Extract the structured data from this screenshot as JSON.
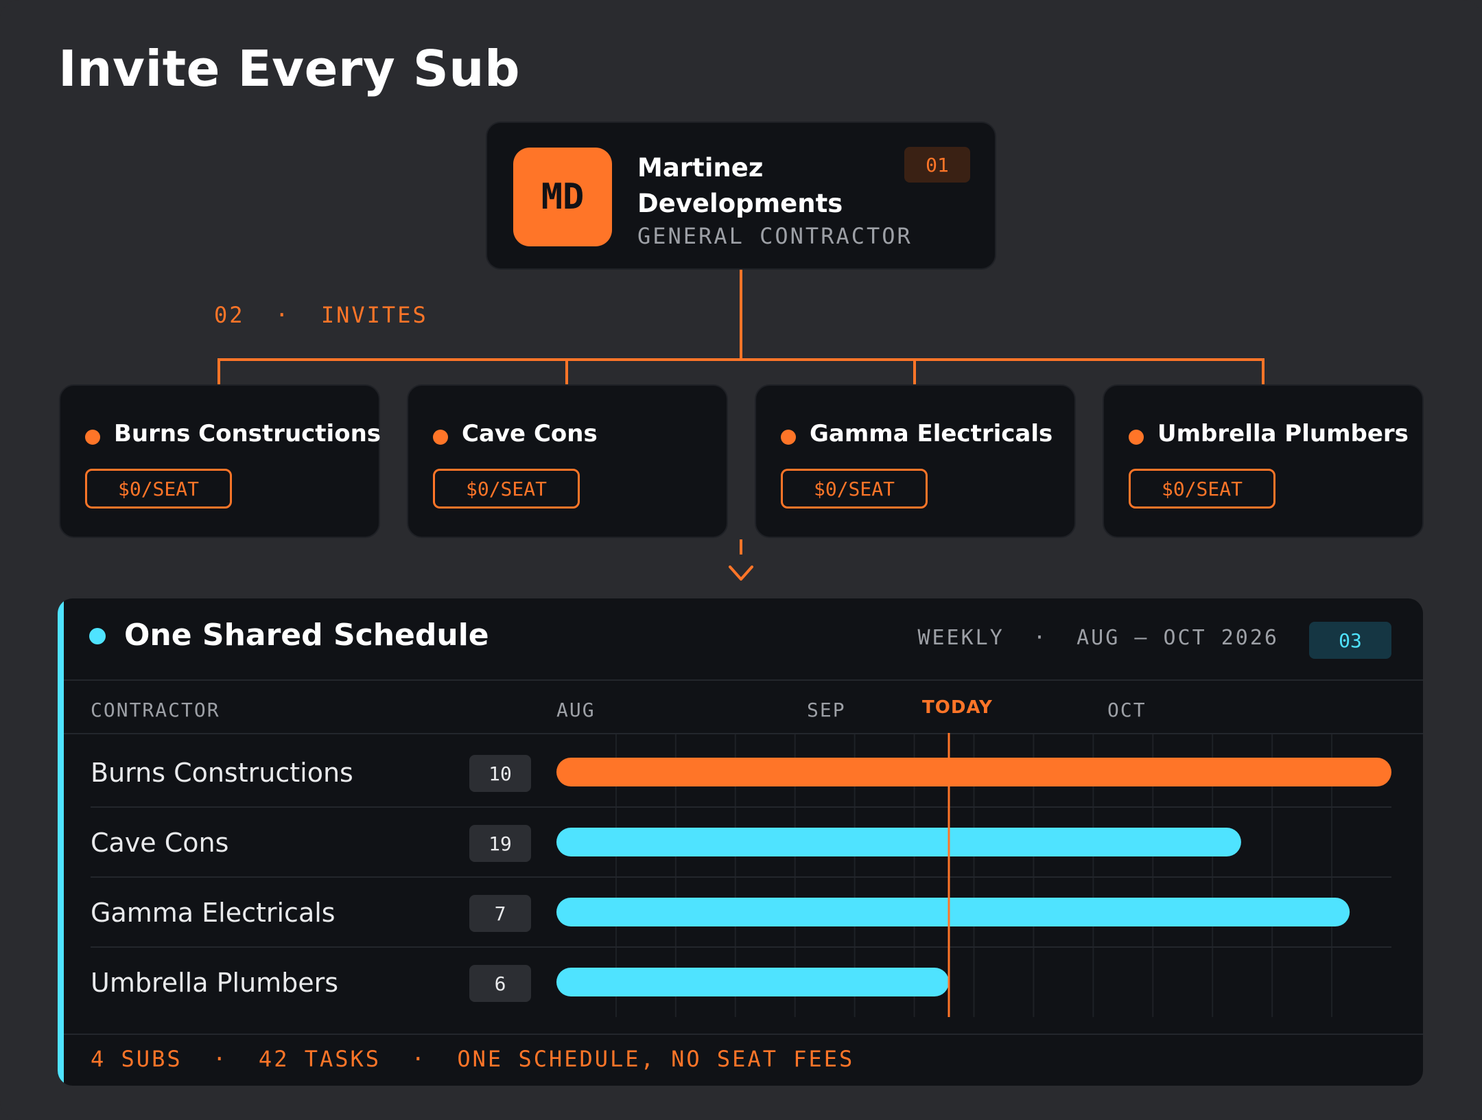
{
  "page": {
    "title": "Invite Every Sub"
  },
  "general_contractor": {
    "initials": "MD",
    "name": "Martinez Developments",
    "role": "GENERAL CONTRACTOR",
    "step": "01"
  },
  "invites": {
    "step": "02",
    "separator": "·",
    "label": "INVITES"
  },
  "subcontractors": [
    {
      "name": "Burns Constructions",
      "price": "$0/SEAT"
    },
    {
      "name": "Cave Cons",
      "price": "$0/SEAT"
    },
    {
      "name": "Gamma Electricals",
      "price": "$0/SEAT"
    },
    {
      "name": "Umbrella Plumbers",
      "price": "$0/SEAT"
    }
  ],
  "schedule": {
    "title": "One Shared Schedule",
    "cadence": "WEEKLY",
    "separator": "·",
    "range": "AUG – OCT 2026",
    "step": "03",
    "column_header": "CONTRACTOR",
    "months": [
      "AUG",
      "SEP",
      "OCT"
    ],
    "today_label": "TODAY",
    "today_fraction": 0.47,
    "rows": [
      {
        "name": "Burns Constructions",
        "tasks": "10",
        "start": 0.0,
        "end": 1.0,
        "color": "#ff7528"
      },
      {
        "name": "Cave Cons",
        "tasks": "19",
        "start": 0.0,
        "end": 0.82,
        "color": "#4fe3ff"
      },
      {
        "name": "Gamma Electricals",
        "tasks": "7",
        "start": 0.0,
        "end": 0.95,
        "color": "#4fe3ff"
      },
      {
        "name": "Umbrella Plumbers",
        "tasks": "6",
        "start": 0.0,
        "end": 0.47,
        "color": "#4fe3ff"
      }
    ],
    "footer": {
      "subs": "4 SUBS",
      "tasks": "42 TASKS",
      "note": "ONE SCHEDULE, NO SEAT FEES",
      "separator": "·"
    }
  },
  "colors": {
    "background": "#2a2b2f",
    "card": "#101216",
    "accent_orange": "#ff7528",
    "accent_cyan": "#4fe3ff",
    "muted_text": "#9da0a6"
  }
}
